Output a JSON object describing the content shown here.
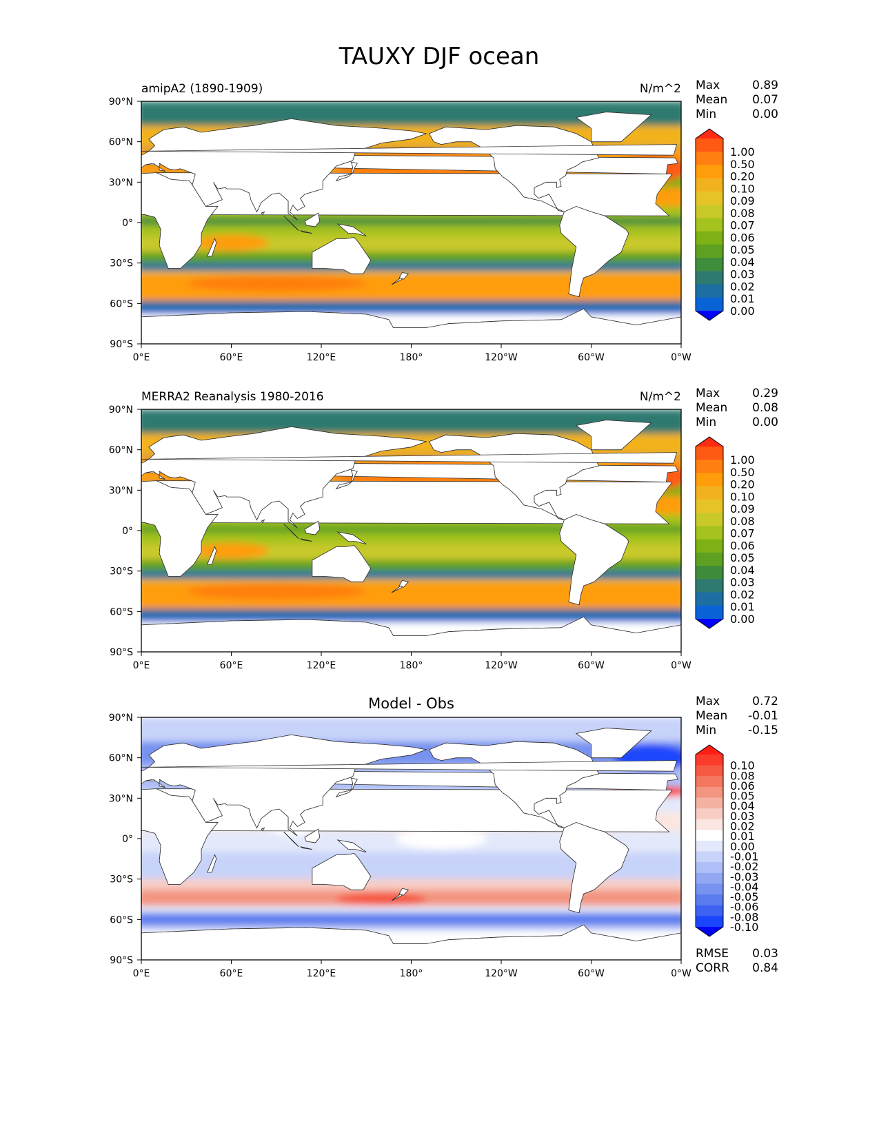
{
  "figure_title": "TAUXY DJF ocean",
  "x_ticks": [
    "0°E",
    "60°E",
    "120°E",
    "180°",
    "120°W",
    "60°W",
    "0°W"
  ],
  "y_ticks": [
    "90°N",
    "60°N",
    "30°N",
    "0°",
    "30°S",
    "60°S",
    "90°S"
  ],
  "seq_levels": [
    "1.00",
    "0.50",
    "0.20",
    "0.10",
    "0.09",
    "0.08",
    "0.07",
    "0.06",
    "0.05",
    "0.04",
    "0.03",
    "0.02",
    "0.01",
    "0.00"
  ],
  "seq_colors": [
    "#ff2a12",
    "#ff5a14",
    "#ff7f10",
    "#ff9d0a",
    "#f2b21f",
    "#e6c427",
    "#c9c929",
    "#a5c31e",
    "#7db116",
    "#5ea022",
    "#3f8c3c",
    "#2f7a70",
    "#1d6fa3",
    "#0a63d6",
    "#0000ff"
  ],
  "diff_levels": [
    "0.10",
    "0.08",
    "0.06",
    "0.05",
    "0.04",
    "0.03",
    "0.02",
    "0.01",
    "0.00",
    "-0.01",
    "-0.02",
    "-0.03",
    "-0.04",
    "-0.05",
    "-0.06",
    "-0.08",
    "-0.10"
  ],
  "diff_colors": [
    "#ff1e14",
    "#fb3c2a",
    "#f65a43",
    "#f3785f",
    "#f39580",
    "#f5b2a3",
    "#f8cec4",
    "#fbe6e1",
    "#ffffff",
    "#e3e9fb",
    "#c8d3fa",
    "#aebef6",
    "#93a8f3",
    "#7792ef",
    "#5a7cee",
    "#3d62f2",
    "#1a46fb",
    "#0000ff"
  ],
  "panels": [
    {
      "title_left": "amipA2 (1890-1909)",
      "title_right": "N/m^2",
      "title_center": "",
      "stats": [
        {
          "label": "Max",
          "value": "0.89"
        },
        {
          "label": "Mean",
          "value": "0.07"
        },
        {
          "label": "Min",
          "value": "0.00"
        }
      ],
      "scale": "seq",
      "footer": []
    },
    {
      "title_left": "MERRA2 Reanalysis 1980-2016",
      "title_right": "N/m^2",
      "title_center": "",
      "stats": [
        {
          "label": "Max",
          "value": "0.29"
        },
        {
          "label": "Mean",
          "value": "0.08"
        },
        {
          "label": "Min",
          "value": "0.00"
        }
      ],
      "scale": "seq",
      "footer": []
    },
    {
      "title_left": "",
      "title_right": "",
      "title_center": "Model - Obs",
      "stats": [
        {
          "label": "Max",
          "value": "0.72"
        },
        {
          "label": "Mean",
          "value": "-0.01"
        },
        {
          "label": "Min",
          "value": "-0.15"
        }
      ],
      "scale": "diff",
      "footer": [
        {
          "label": "RMSE",
          "value": "0.03"
        },
        {
          "label": "CORR",
          "value": "0.84"
        }
      ]
    }
  ],
  "chart_data": [
    {
      "type": "heatmap",
      "title": "amipA2 (1890-1909)",
      "units": "N/m^2",
      "x_range": [
        0,
        360
      ],
      "y_range": [
        -90,
        90
      ],
      "colorbar_levels": [
        0.0,
        0.01,
        0.02,
        0.03,
        0.04,
        0.05,
        0.06,
        0.07,
        0.08,
        0.09,
        0.1,
        0.2,
        0.5,
        1.0
      ],
      "stats": {
        "max": 0.89,
        "mean": 0.07,
        "min": 0.0
      }
    },
    {
      "type": "heatmap",
      "title": "MERRA2 Reanalysis 1980-2016",
      "units": "N/m^2",
      "x_range": [
        0,
        360
      ],
      "y_range": [
        -90,
        90
      ],
      "colorbar_levels": [
        0.0,
        0.01,
        0.02,
        0.03,
        0.04,
        0.05,
        0.06,
        0.07,
        0.08,
        0.09,
        0.1,
        0.2,
        0.5,
        1.0
      ],
      "stats": {
        "max": 0.29,
        "mean": 0.08,
        "min": 0.0
      }
    },
    {
      "type": "heatmap",
      "title": "Model - Obs",
      "x_range": [
        0,
        360
      ],
      "y_range": [
        -90,
        90
      ],
      "colorbar_levels": [
        -0.1,
        -0.08,
        -0.06,
        -0.05,
        -0.04,
        -0.03,
        -0.02,
        -0.01,
        0.0,
        0.01,
        0.02,
        0.03,
        0.04,
        0.05,
        0.06,
        0.08,
        0.1
      ],
      "stats": {
        "max": 0.72,
        "mean": -0.01,
        "min": -0.15,
        "rmse": 0.03,
        "corr": 0.84
      }
    }
  ]
}
